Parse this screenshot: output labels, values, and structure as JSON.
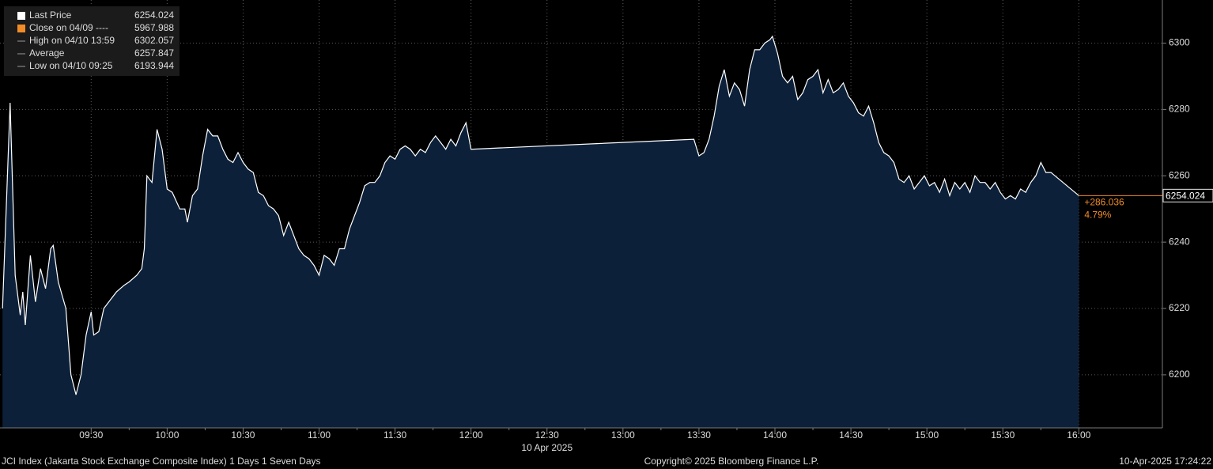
{
  "chart_data": {
    "type": "area",
    "legend": [
      {
        "label": "Last Price",
        "value": 6254.024,
        "color": "#ffffff"
      },
      {
        "label": "Close on 04/09 ----",
        "value": 5967.988,
        "color": "#f28c28"
      },
      {
        "label": "High on 04/10 13:59",
        "value": 6302.057,
        "color": "#9a9a9a"
      },
      {
        "label": "Average",
        "value": 6257.847,
        "color": "#9a9a9a"
      },
      {
        "label": "Low on 04/10 09:25",
        "value": 6193.944,
        "color": "#9a9a9a"
      }
    ],
    "x": [
      "08:55",
      "08:58",
      "09:00",
      "09:02",
      "09:03",
      "09:04",
      "09:06",
      "09:08",
      "09:10",
      "09:12",
      "09:14",
      "09:15",
      "09:17",
      "09:20",
      "09:22",
      "09:24",
      "09:26",
      "09:28",
      "09:30",
      "09:31",
      "09:33",
      "09:35",
      "09:38",
      "09:40",
      "09:43",
      "09:45",
      "09:48",
      "09:50",
      "09:51",
      "09:52",
      "09:54",
      "09:56",
      "09:58",
      "10:00",
      "10:02",
      "10:05",
      "10:07",
      "10:08",
      "10:10",
      "10:12",
      "10:14",
      "10:16",
      "10:18",
      "10:20",
      "10:22",
      "10:24",
      "10:26",
      "10:28",
      "10:30",
      "10:32",
      "10:34",
      "10:36",
      "10:38",
      "10:40",
      "10:42",
      "10:44",
      "10:46",
      "10:48",
      "10:50",
      "10:52",
      "10:54",
      "10:56",
      "10:58",
      "11:00",
      "11:02",
      "11:04",
      "11:06",
      "11:08",
      "11:10",
      "11:12",
      "11:14",
      "11:16",
      "11:18",
      "11:20",
      "11:22",
      "11:24",
      "11:26",
      "11:28",
      "11:30",
      "11:32",
      "11:34",
      "11:36",
      "11:38",
      "11:40",
      "11:42",
      "11:44",
      "11:46",
      "11:48",
      "11:50",
      "11:52",
      "11:54",
      "11:56",
      "11:58",
      "12:00",
      "13:28",
      "13:30",
      "13:32",
      "13:34",
      "13:36",
      "13:38",
      "13:40",
      "13:42",
      "13:44",
      "13:46",
      "13:48",
      "13:50",
      "13:52",
      "13:54",
      "13:56",
      "13:58",
      "13:59",
      "14:01",
      "14:03",
      "14:05",
      "14:07",
      "14:09",
      "14:11",
      "14:13",
      "14:15",
      "14:17",
      "14:19",
      "14:21",
      "14:23",
      "14:25",
      "14:27",
      "14:29",
      "14:31",
      "14:33",
      "14:35",
      "14:37",
      "14:39",
      "14:41",
      "14:43",
      "14:45",
      "14:47",
      "14:49",
      "14:51",
      "14:53",
      "14:55",
      "14:57",
      "14:59",
      "15:01",
      "15:03",
      "15:05",
      "15:07",
      "15:09",
      "15:11",
      "15:13",
      "15:15",
      "15:17",
      "15:19",
      "15:21",
      "15:23",
      "15:25",
      "15:27",
      "15:29",
      "15:31",
      "15:33",
      "15:35",
      "15:37",
      "15:39",
      "15:41",
      "15:43",
      "15:45",
      "15:47",
      "15:49",
      "16:00"
    ],
    "series": [
      {
        "name": "Last Price",
        "color": "#ffffff",
        "fill": "#0c2039",
        "values": [
          6220,
          6282,
          6230,
          6218,
          6225,
          6215,
          6236,
          6222,
          6232,
          6226,
          6238,
          6239,
          6228,
          6220,
          6200,
          6194,
          6200,
          6212,
          6219,
          6212,
          6213,
          6220,
          6223,
          6225,
          6227,
          6228,
          6230,
          6232,
          6238,
          6260,
          6258,
          6274,
          6268,
          6256,
          6255,
          6250,
          6250,
          6246,
          6254,
          6256,
          6266,
          6274,
          6272,
          6272,
          6268,
          6265,
          6264,
          6267,
          6264,
          6262,
          6261,
          6255,
          6254,
          6251,
          6250,
          6248,
          6242,
          6246,
          6242,
          6238,
          6236,
          6235,
          6233,
          6230,
          6236,
          6235,
          6233,
          6238,
          6238,
          6244,
          6248,
          6252,
          6257,
          6258,
          6258,
          6260,
          6264,
          6266,
          6265,
          6268,
          6269,
          6268,
          6266,
          6268,
          6267,
          6270,
          6272,
          6270,
          6268,
          6271,
          6269,
          6273,
          6276,
          6268,
          6271,
          6266,
          6267,
          6271,
          6278,
          6287,
          6292,
          6284,
          6288,
          6286,
          6281,
          6292,
          6298,
          6298,
          6300,
          6301,
          6302.057,
          6297,
          6290,
          6288,
          6290,
          6283,
          6285,
          6289,
          6290,
          6292,
          6285,
          6289,
          6285,
          6286,
          6288,
          6284,
          6282,
          6279,
          6278,
          6281,
          6276,
          6270,
          6267,
          6266,
          6264,
          6259,
          6258,
          6260,
          6256,
          6258,
          6260,
          6257,
          6258,
          6255,
          6259,
          6254,
          6258,
          6256,
          6258,
          6255,
          6260,
          6258,
          6258,
          6256,
          6258,
          6255,
          6253,
          6254,
          6253,
          6256,
          6255,
          6258,
          6260,
          6264,
          6261,
          6261,
          6254.024
        ]
      }
    ],
    "last_change": {
      "change": "+286.036",
      "change_pct": "4.79%",
      "color": "#f28c28"
    },
    "xlim": [
      "08:54",
      "16:33"
    ],
    "xticks": [
      "09:30",
      "10:00",
      "10:30",
      "11:00",
      "11:30",
      "12:00",
      "12:30",
      "13:00",
      "13:30",
      "14:00",
      "14:30",
      "15:00",
      "15:30",
      "16:00"
    ],
    "date_label": "10 Apr 2025",
    "ylim": [
      6184,
      6313
    ],
    "yticks": [
      6200,
      6220,
      6240,
      6260,
      6280,
      6300
    ],
    "grid": true,
    "footer": {
      "left": "JCI Index (Jakarta Stock Exchange Composite Index) 1 Days 1 Seven Days",
      "center": "Copyright© 2025 Bloomberg Finance L.P.",
      "right": "10-Apr-2025 17:24:22"
    }
  }
}
